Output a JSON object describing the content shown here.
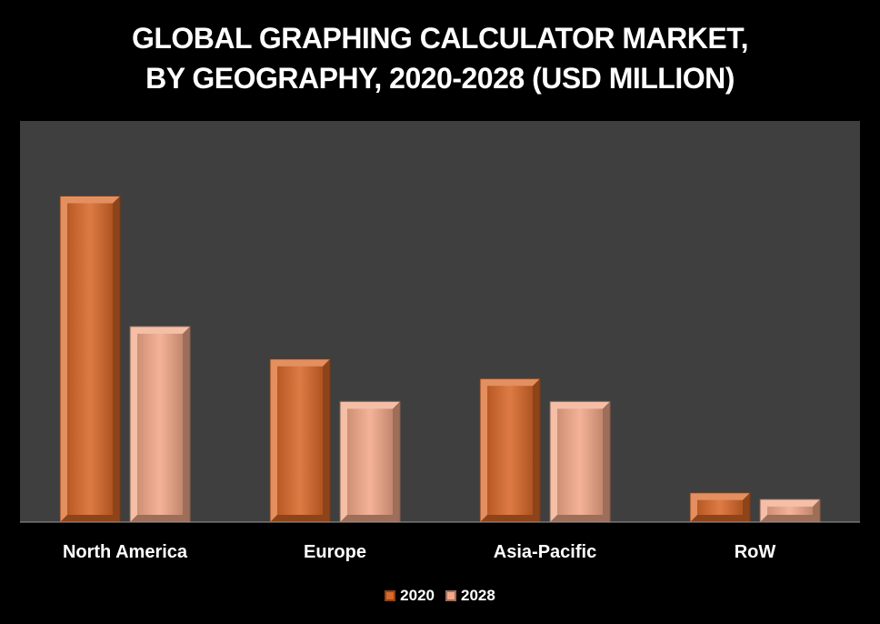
{
  "chart_data": {
    "type": "bar",
    "title": "GLOBAL GRAPHING CALCULATOR MARKET,",
    "subtitle": "BY GEOGRAPHY, 2020-2028 (USD MILLION)",
    "categories": [
      "North America",
      "Europe",
      "Asia-Pacific",
      "RoW"
    ],
    "series": [
      {
        "name": "2020",
        "values": [
          100,
          50,
          44,
          9
        ],
        "color": "#D9692A"
      },
      {
        "name": "2028",
        "values": [
          60,
          37,
          37,
          7
        ],
        "color": "#F2A98A"
      }
    ],
    "xlabel": "",
    "ylabel": "",
    "ylim": [
      0,
      123
    ],
    "grid": false,
    "legend_position": "bottom",
    "plot_background": "#3F3F3F",
    "page_background": "#000000"
  }
}
